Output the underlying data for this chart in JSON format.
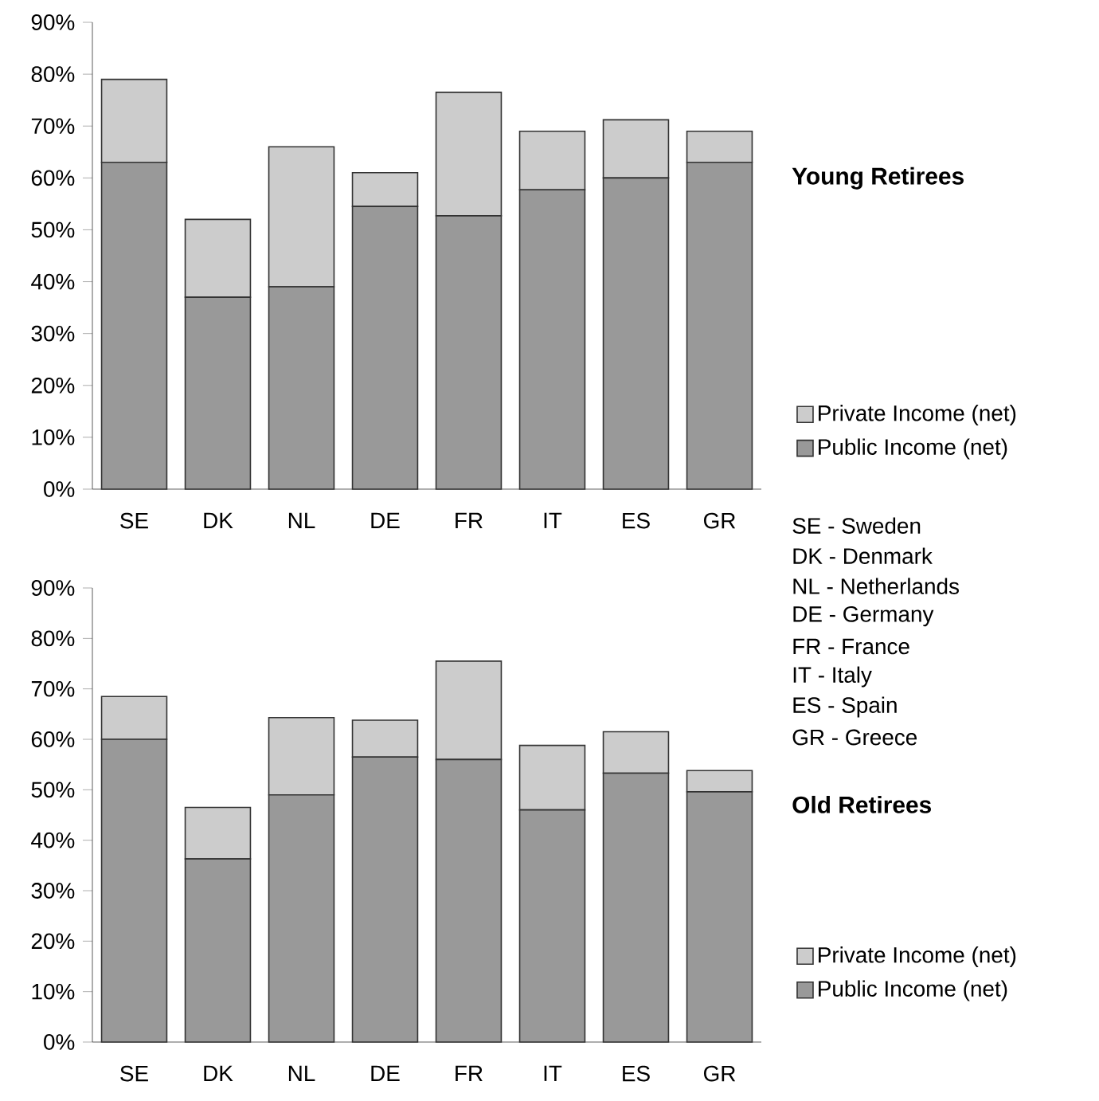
{
  "chart_data": [
    {
      "type": "bar",
      "stacked": true,
      "legend": "right",
      "categories": [
        "SE",
        "DK",
        "NL",
        "DE",
        "FR",
        "IT",
        "ES",
        "GR"
      ],
      "series": [
        {
          "name": "Public Income (net)",
          "color": "#999999",
          "values": [
            63,
            37,
            39,
            54.5,
            52.7,
            57.7,
            60,
            63
          ]
        },
        {
          "name": "Private Income (net)",
          "color": "#cccccc",
          "values": [
            16,
            15,
            27,
            6.5,
            23.8,
            11.3,
            11.2,
            6
          ]
        }
      ],
      "ylim": [
        0,
        90
      ],
      "yticks": [
        {
          "value": 0,
          "label": "0%"
        },
        {
          "value": 10,
          "label": "10%"
        },
        {
          "value": 20,
          "label": "20%"
        },
        {
          "value": 30,
          "label": "30%"
        },
        {
          "value": 40,
          "label": "40%"
        },
        {
          "value": 50,
          "label": "50%"
        },
        {
          "value": 60,
          "label": "60%"
        },
        {
          "value": 70,
          "label": "70%"
        },
        {
          "value": 80,
          "label": "80%"
        },
        {
          "value": 90,
          "label": "90%"
        }
      ],
      "annotations": [
        "Young Retirees",
        "SE  -  Sweden",
        "DK  -  Denmark",
        "NL  -  Netherlands",
        "DE  -  Germany",
        "FR  -  France",
        "IT    -  Italy",
        "ES  -  Spain",
        "GR  -  Greece"
      ]
    },
    {
      "type": "bar",
      "stacked": true,
      "legend": "right",
      "annotations": [
        "Old Retirees"
      ],
      "categories": [
        "SE",
        "DK",
        "NL",
        "DE",
        "FR",
        "IT",
        "ES",
        "GR"
      ],
      "series": [
        {
          "name": "Public Income (net)",
          "color": "#999999",
          "values": [
            60,
            36.3,
            49,
            56.5,
            56,
            46,
            53.3,
            49.6
          ]
        },
        {
          "name": "Private Income (net)",
          "color": "#cccccc",
          "values": [
            8.5,
            10.2,
            15.3,
            7.3,
            19.5,
            12.8,
            8.2,
            4.2
          ]
        }
      ],
      "ylim": [
        0,
        90
      ],
      "yticks": [
        {
          "value": 0,
          "label": "0%"
        },
        {
          "value": 10,
          "label": "10%"
        },
        {
          "value": 20,
          "label": "20%"
        },
        {
          "value": 30,
          "label": "30%"
        },
        {
          "value": 40,
          "label": "40%"
        },
        {
          "value": 50,
          "label": "50%"
        },
        {
          "value": 60,
          "label": "60%"
        },
        {
          "value": 70,
          "label": "70%"
        },
        {
          "value": 80,
          "label": "80%"
        },
        {
          "value": 90,
          "label": "90%"
        }
      ]
    }
  ]
}
